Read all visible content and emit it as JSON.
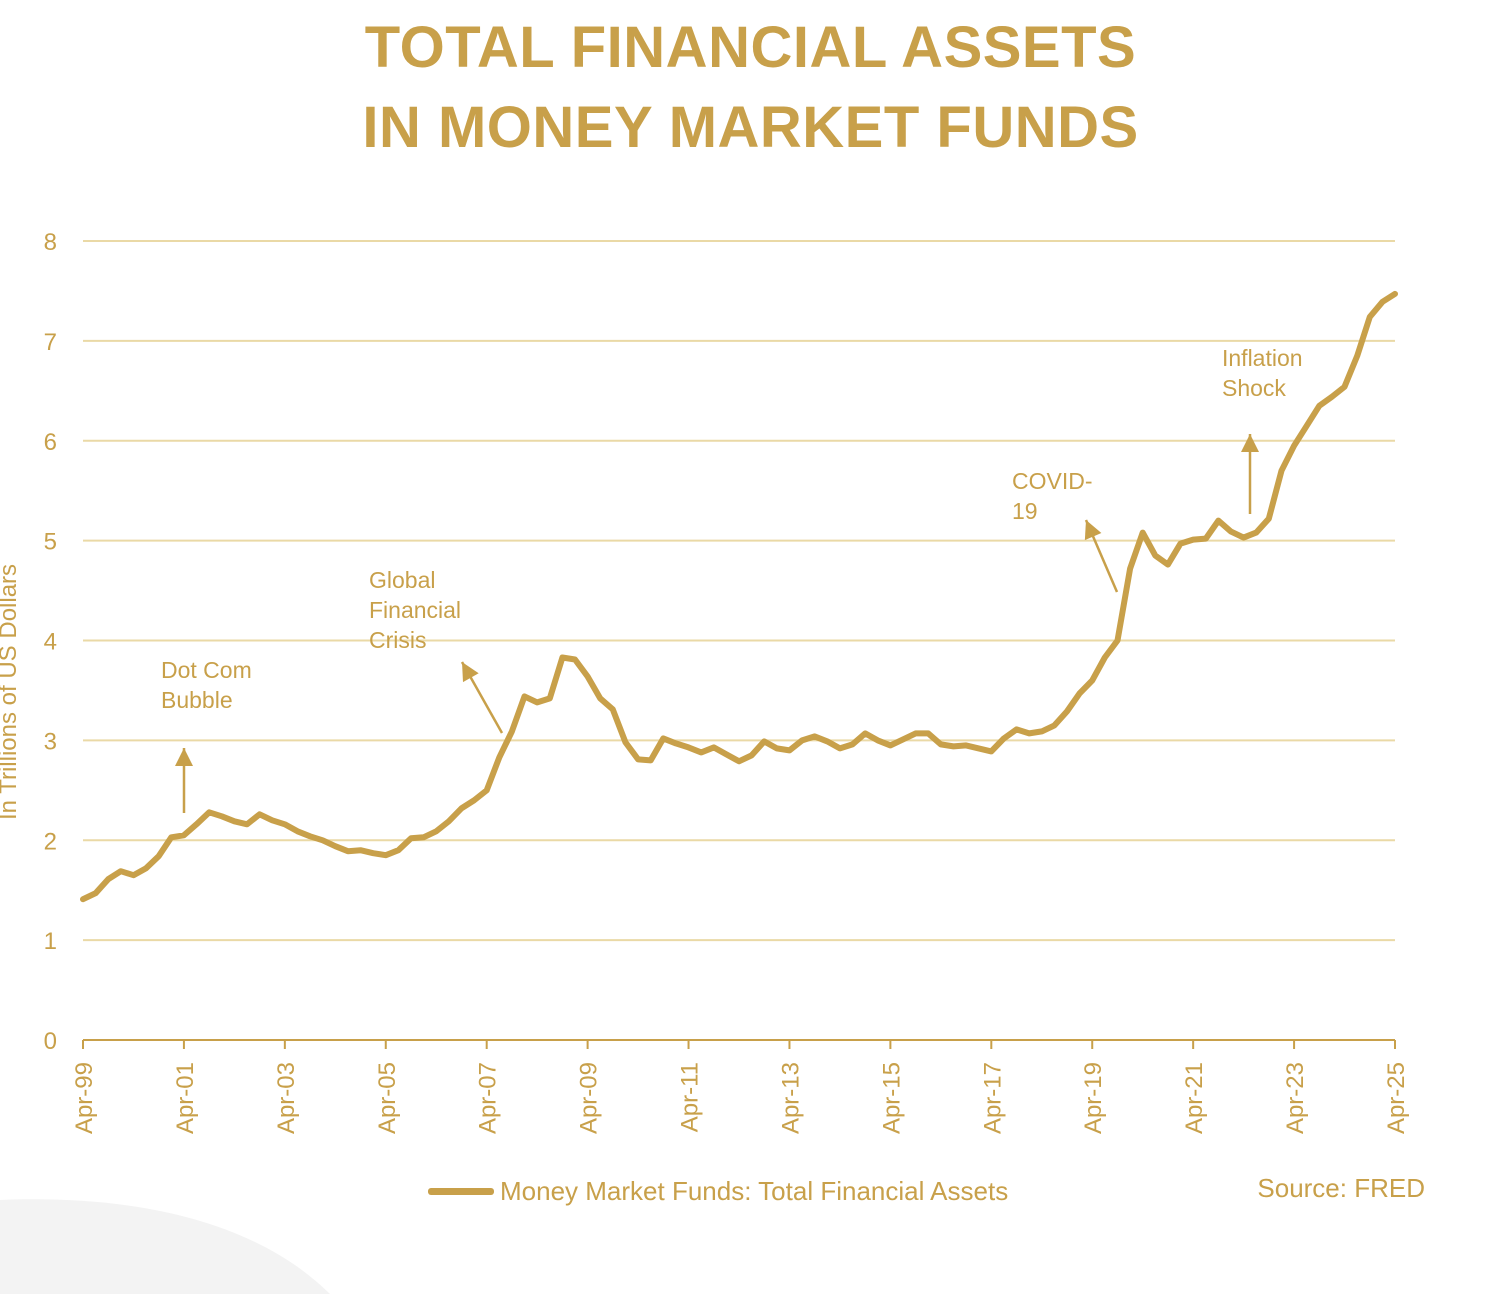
{
  "title_line1": "TOTAL FINANCIAL ASSETS",
  "title_line2": "IN MONEY MARKET FUNDS",
  "source": "Source: FRED",
  "legend_label": "Money Market Funds: Total Financial Assets",
  "colors": {
    "accent": "#C8A04A",
    "grid": "#EAD9A6"
  },
  "chart_data": {
    "type": "line",
    "title": "TOTAL FINANCIAL ASSETS IN MONEY MARKET FUNDS",
    "xlabel": "",
    "ylabel": "In Trillions of US Dollars",
    "ylim": [
      0,
      8
    ],
    "yticks": [
      0,
      1,
      2,
      3,
      4,
      5,
      6,
      7,
      8
    ],
    "xticks": [
      "Apr-99",
      "Apr-01",
      "Apr-03",
      "Apr-05",
      "Apr-07",
      "Apr-09",
      "Apr-11",
      "Apr-13",
      "Apr-15",
      "Apr-17",
      "Apr-19",
      "Apr-21",
      "Apr-23",
      "Apr-25"
    ],
    "grid": true,
    "legend_position": "bottom",
    "series": [
      {
        "name": "Money Market Funds: Total Financial Assets",
        "x": [
          "1999-04",
          "1999-07",
          "1999-10",
          "2000-01",
          "2000-04",
          "2000-07",
          "2000-10",
          "2001-01",
          "2001-04",
          "2001-07",
          "2001-10",
          "2002-01",
          "2002-04",
          "2002-07",
          "2002-10",
          "2003-01",
          "2003-04",
          "2003-07",
          "2003-10",
          "2004-01",
          "2004-04",
          "2004-07",
          "2004-10",
          "2005-01",
          "2005-04",
          "2005-07",
          "2005-10",
          "2006-01",
          "2006-04",
          "2006-07",
          "2006-10",
          "2007-01",
          "2007-04",
          "2007-07",
          "2007-10",
          "2008-01",
          "2008-04",
          "2008-07",
          "2008-10",
          "2009-01",
          "2009-04",
          "2009-07",
          "2009-10",
          "2010-01",
          "2010-04",
          "2010-07",
          "2010-10",
          "2011-01",
          "2011-04",
          "2011-07",
          "2011-10",
          "2012-01",
          "2012-04",
          "2012-07",
          "2012-10",
          "2013-01",
          "2013-04",
          "2013-07",
          "2013-10",
          "2014-01",
          "2014-04",
          "2014-07",
          "2014-10",
          "2015-01",
          "2015-04",
          "2015-07",
          "2015-10",
          "2016-01",
          "2016-04",
          "2016-07",
          "2016-10",
          "2017-01",
          "2017-04",
          "2017-07",
          "2017-10",
          "2018-01",
          "2018-04",
          "2018-07",
          "2018-10",
          "2019-01",
          "2019-04",
          "2019-07",
          "2019-10",
          "2020-01",
          "2020-04",
          "2020-07",
          "2020-10",
          "2021-01",
          "2021-04",
          "2021-07",
          "2021-10",
          "2022-01",
          "2022-04",
          "2022-07",
          "2022-10",
          "2023-01",
          "2023-04",
          "2023-07",
          "2023-10",
          "2024-01",
          "2024-04",
          "2024-07",
          "2024-10",
          "2025-01",
          "2025-04"
        ],
        "values": [
          1.41,
          1.47,
          1.61,
          1.69,
          1.65,
          1.72,
          1.84,
          2.03,
          2.05,
          2.16,
          2.28,
          2.24,
          2.19,
          2.16,
          2.26,
          2.2,
          2.16,
          2.09,
          2.04,
          2.0,
          1.94,
          1.89,
          1.9,
          1.87,
          1.85,
          1.9,
          2.02,
          2.03,
          2.09,
          2.19,
          2.32,
          2.4,
          2.5,
          2.83,
          3.09,
          3.44,
          3.38,
          3.42,
          3.83,
          3.81,
          3.64,
          3.42,
          3.31,
          2.98,
          2.81,
          2.8,
          3.02,
          2.97,
          2.93,
          2.88,
          2.93,
          2.86,
          2.79,
          2.85,
          2.99,
          2.92,
          2.9,
          3.0,
          3.04,
          2.99,
          2.92,
          2.96,
          3.07,
          3.0,
          2.95,
          3.01,
          3.07,
          3.07,
          2.96,
          2.94,
          2.95,
          2.92,
          2.89,
          3.02,
          3.11,
          3.07,
          3.09,
          3.15,
          3.29,
          3.47,
          3.6,
          3.83,
          4.0,
          4.72,
          5.08,
          4.85,
          4.76,
          4.97,
          5.01,
          5.02,
          5.2,
          5.09,
          5.03,
          5.08,
          5.22,
          5.7,
          5.95,
          6.15,
          6.35,
          6.44,
          6.54,
          6.85,
          7.24,
          7.39,
          7.47
        ]
      }
    ],
    "annotations": [
      {
        "lines": [
          "Dot Com",
          "Bubble"
        ],
        "target": "2001-04"
      },
      {
        "lines": [
          "Global",
          "Financial",
          "Crisis"
        ],
        "target": "2007-04"
      },
      {
        "lines": [
          "COVID-",
          "19"
        ],
        "target": "2019-10"
      },
      {
        "lines": [
          "Inflation",
          "Shock"
        ],
        "target": "2022-04"
      }
    ]
  }
}
